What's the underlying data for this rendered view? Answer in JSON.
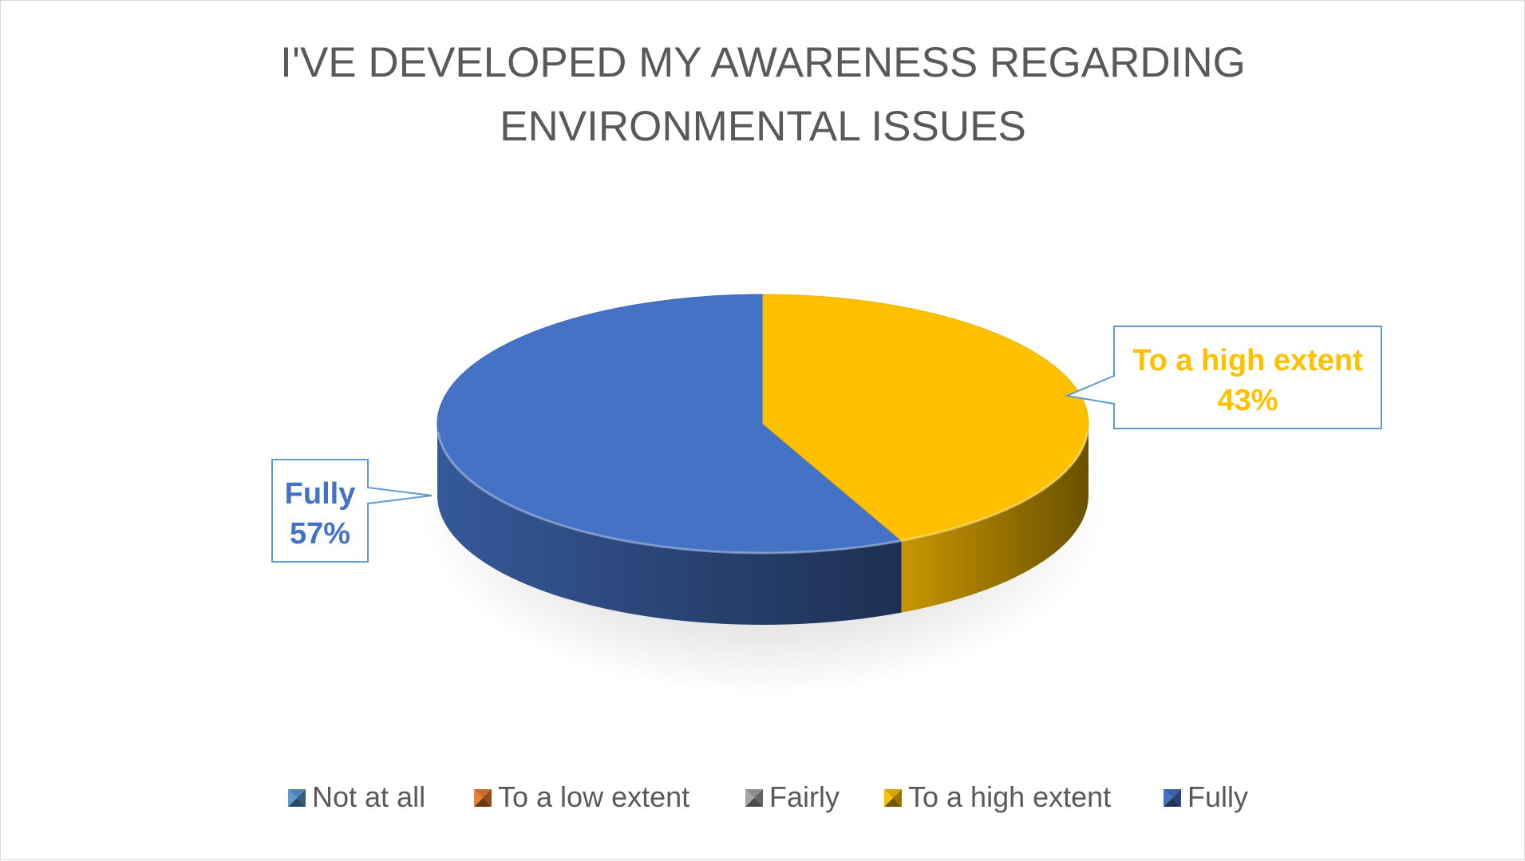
{
  "chart_data": {
    "type": "pie",
    "title": "I'VE DEVELOPED MY AWARENESS REGARDING ENVIRONMENTAL ISSUES",
    "title_lines": [
      "I'VE DEVELOPED MY AWARENESS REGARDING",
      "ENVIRONMENTAL ISSUES"
    ],
    "three_d": true,
    "legend_position": "bottom",
    "categories": [
      "Not at all",
      "To a low extent",
      "Fairly",
      "To a high extent",
      "Fully"
    ],
    "values": [
      0,
      0,
      0,
      43,
      57
    ],
    "colors": [
      "#5B9BD5",
      "#ED7D31",
      "#A5A5A5",
      "#FFC000",
      "#4472C4"
    ],
    "data_labels": [
      {
        "category": "To a high extent",
        "percent": "43%",
        "color": "#FFC000"
      },
      {
        "category": "Fully",
        "percent": "57%",
        "color": "#4472C4"
      }
    ]
  }
}
